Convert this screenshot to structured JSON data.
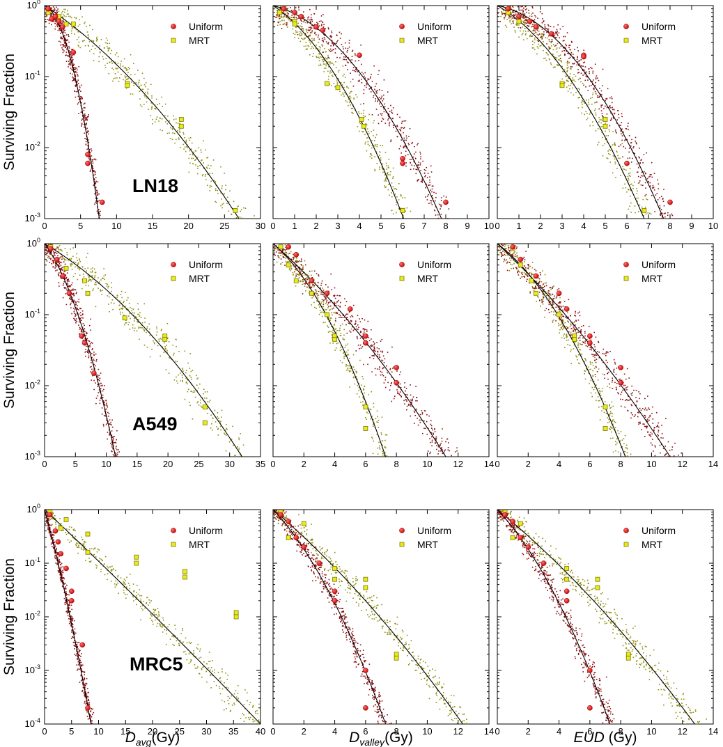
{
  "chart_data": {
    "type": "scatter",
    "title": "",
    "ylabel": "Surviving Fraction",
    "legend": [
      "Uniform",
      "MRT"
    ],
    "legend_position": "top-right",
    "colors": {
      "uniform": "#e01818",
      "uniform_dots": "#8b0d10",
      "mrt": "#eaea1c",
      "mrt_dots": "#8e8e10",
      "fit": "#000000"
    },
    "x_axes": [
      {
        "label": "D",
        "subscript": "avg",
        "unit": "(Gy)"
      },
      {
        "label": "D",
        "subscript": "valley",
        "unit": "(Gy)"
      },
      {
        "label": "EUD",
        "subscript": "",
        "unit": " (Gy)"
      }
    ],
    "panels": [
      {
        "row": 0,
        "col": 0,
        "cell_line": "LN18",
        "xlim": [
          0,
          30
        ],
        "xticks": [
          "0",
          "5",
          "10",
          "15",
          "20",
          "25",
          "30"
        ],
        "ylim": [
          0.001,
          1
        ],
        "uniform": {
          "fit_endpoint": 7.6,
          "mean_curvature": 0.9,
          "points": [
            [
              0.5,
              0.9
            ],
            [
              1,
              0.65
            ],
            [
              1.5,
              0.7
            ],
            [
              2,
              0.6
            ],
            [
              2.5,
              0.5
            ],
            [
              4,
              0.22
            ],
            [
              6,
              0.008
            ],
            [
              6,
              0.006
            ],
            [
              8,
              0.0017
            ]
          ]
        },
        "mrt": {
          "fit_endpoint": 27,
          "mean_curvature": 0.4,
          "points": [
            [
              0.5,
              0.8
            ],
            [
              2,
              0.7
            ],
            [
              3,
              0.55
            ],
            [
              4,
              0.55
            ],
            [
              11.5,
              0.08
            ],
            [
              11.5,
              0.075
            ],
            [
              19,
              0.025
            ],
            [
              19,
              0.02
            ],
            [
              26.5,
              0.0013
            ]
          ]
        }
      },
      {
        "row": 0,
        "col": 1,
        "cell_line": "",
        "xlim": [
          0,
          10
        ],
        "xticks": [
          "0",
          "1",
          "2",
          "3",
          "4",
          "5",
          "6",
          "7",
          "8",
          "9",
          "10"
        ],
        "ylim": [
          0.001,
          1
        ],
        "uniform": {
          "fit_endpoint": 7.8,
          "mean_curvature": 0.8,
          "points": [
            [
              0.5,
              0.9
            ],
            [
              1,
              0.8
            ],
            [
              1.3,
              0.7
            ],
            [
              2,
              0.5
            ],
            [
              2.3,
              0.45
            ],
            [
              4,
              0.2
            ],
            [
              6,
              0.007
            ],
            [
              6,
              0.006
            ],
            [
              8,
              0.0017
            ]
          ]
        },
        "mrt": {
          "fit_endpoint": 6.05,
          "mean_curvature": 0.6,
          "points": [
            [
              0.3,
              0.8
            ],
            [
              1,
              0.6
            ],
            [
              1,
              0.55
            ],
            [
              2.5,
              0.08
            ],
            [
              3,
              0.07
            ],
            [
              4.1,
              0.025
            ],
            [
              4.2,
              0.02
            ],
            [
              6,
              0.0013
            ]
          ]
        }
      },
      {
        "row": 0,
        "col": 2,
        "cell_line": "",
        "xlim": [
          0,
          10
        ],
        "xticks": [
          "0",
          "1",
          "2",
          "3",
          "4",
          "5",
          "6",
          "7",
          "8",
          "9",
          "10"
        ],
        "ylim": [
          0.001,
          1
        ],
        "uniform": {
          "fit_endpoint": 7.7,
          "mean_curvature": 0.85,
          "points": [
            [
              0.5,
              0.9
            ],
            [
              1,
              0.7
            ],
            [
              1.5,
              0.6
            ],
            [
              1.8,
              0.5
            ],
            [
              2.5,
              0.4
            ],
            [
              4,
              0.2
            ],
            [
              4,
              0.19
            ],
            [
              6,
              0.006
            ],
            [
              8,
              0.0017
            ]
          ]
        },
        "mrt": {
          "fit_endpoint": 6.8,
          "mean_curvature": 0.6,
          "points": [
            [
              0.5,
              0.8
            ],
            [
              1,
              0.6
            ],
            [
              1.8,
              0.5
            ],
            [
              3,
              0.08
            ],
            [
              3,
              0.075
            ],
            [
              5,
              0.025
            ],
            [
              5,
              0.02
            ],
            [
              6.8,
              0.0013
            ]
          ]
        }
      },
      {
        "row": 1,
        "col": 0,
        "cell_line": "A549",
        "xlim": [
          0,
          35
        ],
        "xticks": [
          "0",
          "5",
          "10",
          "15",
          "20",
          "25",
          "30",
          "35"
        ],
        "ylim": [
          0.001,
          1
        ],
        "uniform": {
          "fit_endpoint": 11.5,
          "mean_curvature": 0.55,
          "points": [
            [
              1,
              0.85
            ],
            [
              2,
              0.6
            ],
            [
              3,
              0.35
            ],
            [
              4,
              0.2
            ],
            [
              6,
              0.05
            ],
            [
              6.5,
              0.04
            ],
            [
              8,
              0.015
            ]
          ]
        },
        "mrt": {
          "fit_endpoint": 32,
          "mean_curvature": 0.45,
          "points": [
            [
              1,
              0.9
            ],
            [
              3.5,
              0.45
            ],
            [
              6.5,
              0.3
            ],
            [
              7,
              0.2
            ],
            [
              13,
              0.09
            ],
            [
              19.5,
              0.05
            ],
            [
              19.5,
              0.045
            ],
            [
              26,
              0.005
            ],
            [
              26,
              0.003
            ]
          ]
        }
      },
      {
        "row": 1,
        "col": 1,
        "cell_line": "",
        "xlim": [
          0,
          14
        ],
        "xticks": [
          "0",
          "2",
          "4",
          "6",
          "8",
          "10",
          "12",
          "14"
        ],
        "ylim": [
          0.001,
          1
        ],
        "uniform": {
          "fit_endpoint": 11.2,
          "mean_curvature": 0.3,
          "points": [
            [
              1,
              0.9
            ],
            [
              1.5,
              0.7
            ],
            [
              2.5,
              0.3
            ],
            [
              3.5,
              0.2
            ],
            [
              5,
              0.12
            ],
            [
              6,
              0.05
            ],
            [
              6,
              0.04
            ],
            [
              8,
              0.018
            ],
            [
              8,
              0.011
            ]
          ]
        },
        "mrt": {
          "fit_endpoint": 7.3,
          "mean_curvature": 0.55,
          "points": [
            [
              0.5,
              0.9
            ],
            [
              1,
              0.5
            ],
            [
              1.5,
              0.3
            ],
            [
              2.5,
              0.2
            ],
            [
              3.5,
              0.1
            ],
            [
              4,
              0.05
            ],
            [
              4,
              0.045
            ],
            [
              6,
              0.005
            ],
            [
              6,
              0.0025
            ]
          ]
        }
      },
      {
        "row": 1,
        "col": 2,
        "cell_line": "",
        "xlim": [
          0,
          14
        ],
        "xticks": [
          "0",
          "2",
          "4",
          "6",
          "8",
          "10",
          "12",
          "14"
        ],
        "ylim": [
          0.001,
          1
        ],
        "uniform": {
          "fit_endpoint": 11.2,
          "mean_curvature": 0.25,
          "points": [
            [
              1,
              0.9
            ],
            [
              1.5,
              0.6
            ],
            [
              2.5,
              0.35
            ],
            [
              4,
              0.2
            ],
            [
              4.5,
              0.12
            ],
            [
              6,
              0.05
            ],
            [
              6,
              0.04
            ],
            [
              8,
              0.018
            ],
            [
              8,
              0.011
            ]
          ]
        },
        "mrt": {
          "fit_endpoint": 8.3,
          "mean_curvature": 0.55,
          "points": [
            [
              1,
              0.85
            ],
            [
              1.5,
              0.5
            ],
            [
              2.2,
              0.3
            ],
            [
              2.5,
              0.2
            ],
            [
              4,
              0.1
            ],
            [
              5,
              0.05
            ],
            [
              5,
              0.045
            ],
            [
              7,
              0.005
            ],
            [
              7,
              0.0025
            ]
          ]
        }
      },
      {
        "row": 2,
        "col": 0,
        "cell_line": "MRC5",
        "xlim": [
          0,
          40
        ],
        "xticks": [
          "0",
          "5",
          "10",
          "15",
          "20",
          "25",
          "30",
          "35",
          "40"
        ],
        "ylim": [
          0.0001,
          1
        ],
        "uniform": {
          "fit_endpoint": 8.6,
          "mean_curvature": 0.2,
          "points": [
            [
              1,
              0.8
            ],
            [
              2,
              0.4
            ],
            [
              2.5,
              0.25
            ],
            [
              3,
              0.15
            ],
            [
              4,
              0.08
            ],
            [
              5,
              0.03
            ],
            [
              5,
              0.02
            ],
            [
              7,
              0.003
            ],
            [
              8,
              0.0002
            ]
          ]
        },
        "mrt": {
          "fit_endpoint": 40,
          "mean_curvature": 0.05,
          "points": [
            [
              1,
              0.9
            ],
            [
              3,
              0.45
            ],
            [
              4,
              0.65
            ],
            [
              8,
              0.35
            ],
            [
              8,
              0.16
            ],
            [
              17,
              0.13
            ],
            [
              17,
              0.1
            ],
            [
              26,
              0.07
            ],
            [
              26,
              0.055
            ],
            [
              35.5,
              0.012
            ],
            [
              35.5,
              0.01
            ]
          ]
        }
      },
      {
        "row": 2,
        "col": 1,
        "cell_line": "",
        "xlim": [
          0,
          14
        ],
        "xticks": [
          "0",
          "2",
          "4",
          "6",
          "8",
          "10",
          "12",
          "14"
        ],
        "ylim": [
          0.0001,
          1
        ],
        "uniform": {
          "fit_endpoint": 7.3,
          "mean_curvature": 0.45,
          "points": [
            [
              0.5,
              0.8
            ],
            [
              1,
              0.6
            ],
            [
              1.5,
              0.3
            ],
            [
              2,
              0.2
            ],
            [
              3,
              0.1
            ],
            [
              4,
              0.03
            ],
            [
              4,
              0.02
            ],
            [
              6,
              0.001
            ],
            [
              6,
              0.0002
            ]
          ]
        },
        "mrt": {
          "fit_endpoint": 12.3,
          "mean_curvature": 0.25,
          "points": [
            [
              0.5,
              0.9
            ],
            [
              1,
              0.3
            ],
            [
              2,
              0.55
            ],
            [
              4,
              0.08
            ],
            [
              4,
              0.05
            ],
            [
              6,
              0.05
            ],
            [
              6,
              0.035
            ],
            [
              8,
              0.002
            ],
            [
              8,
              0.0017
            ]
          ]
        }
      },
      {
        "row": 2,
        "col": 2,
        "cell_line": "",
        "xlim": [
          0,
          14
        ],
        "xticks": [
          "0",
          "2",
          "4",
          "6",
          "8",
          "10",
          "12",
          "14"
        ],
        "ylim": [
          0.0001,
          1
        ],
        "uniform": {
          "fit_endpoint": 7.3,
          "mean_curvature": 0.45,
          "points": [
            [
              0.5,
              0.8
            ],
            [
              1,
              0.6
            ],
            [
              1.5,
              0.3
            ],
            [
              2,
              0.2
            ],
            [
              3,
              0.1
            ],
            [
              4.5,
              0.03
            ],
            [
              4.5,
              0.02
            ],
            [
              6,
              0.001
            ],
            [
              6,
              0.0002
            ]
          ]
        },
        "mrt": {
          "fit_endpoint": 12.8,
          "mean_curvature": 0.25,
          "points": [
            [
              0.5,
              0.9
            ],
            [
              1,
              0.3
            ],
            [
              1.5,
              0.55
            ],
            [
              4.5,
              0.08
            ],
            [
              4.5,
              0.05
            ],
            [
              6.5,
              0.05
            ],
            [
              6.5,
              0.035
            ],
            [
              8.5,
              0.002
            ],
            [
              8.5,
              0.0017
            ]
          ]
        }
      }
    ]
  }
}
